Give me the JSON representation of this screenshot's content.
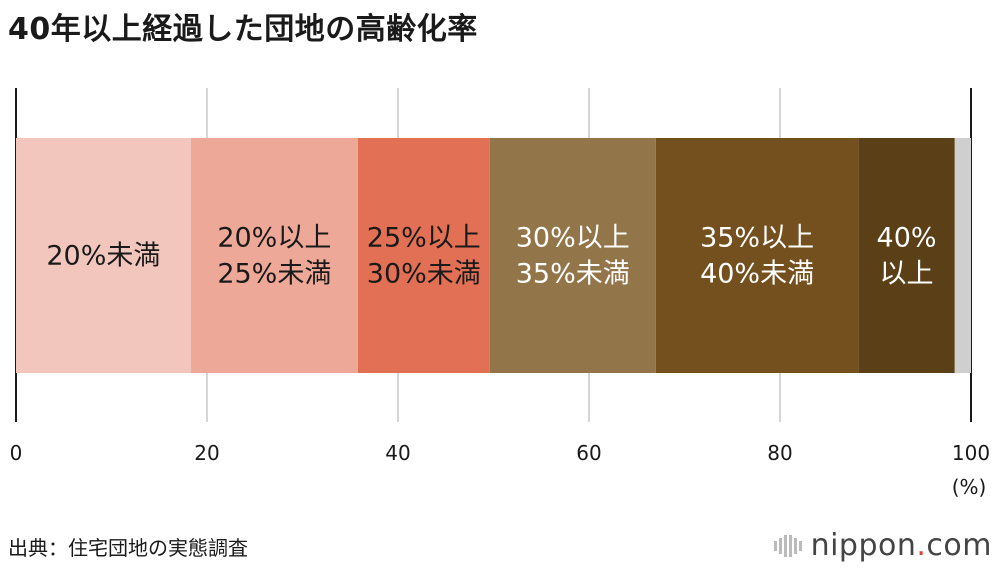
{
  "title": "40年以上経過した団地の高齢化率",
  "source": "出典：住宅団地の実態調査",
  "logo": {
    "brand": "nippon",
    "dot": ".",
    "tld": "com"
  },
  "chart_data": {
    "type": "bar",
    "orientation": "horizontal-stacked-100",
    "unit_label": "(%)",
    "xlim": [
      0,
      100
    ],
    "xticks": [
      0,
      20,
      40,
      60,
      80,
      100
    ],
    "grid": true,
    "segments": [
      {
        "label": [
          "20%未満"
        ],
        "value": 18.3,
        "color": "#f2c6bc",
        "text_color": "#1a1a1a"
      },
      {
        "label": [
          "20%以上",
          "25%未満"
        ],
        "value": 17.5,
        "color": "#eda898",
        "text_color": "#1a1a1a"
      },
      {
        "label": [
          "25%以上",
          "30%未満"
        ],
        "value": 13.8,
        "color": "#e27055",
        "text_color": "#1a1a1a"
      },
      {
        "label": [
          "30%以上",
          "35%未満"
        ],
        "value": 17.4,
        "color": "#93754a",
        "text_color": "#ffffff"
      },
      {
        "label": [
          "35%以上",
          "40%未満"
        ],
        "value": 21.2,
        "color": "#75501f",
        "text_color": "#ffffff"
      },
      {
        "label": [
          "40%",
          "以上"
        ],
        "value": 10.1,
        "color": "#5b3f17",
        "text_color": "#ffffff"
      },
      {
        "label": [],
        "value": 1.7,
        "color": "#cfcfcf",
        "text_color": "#1a1a1a"
      }
    ]
  }
}
